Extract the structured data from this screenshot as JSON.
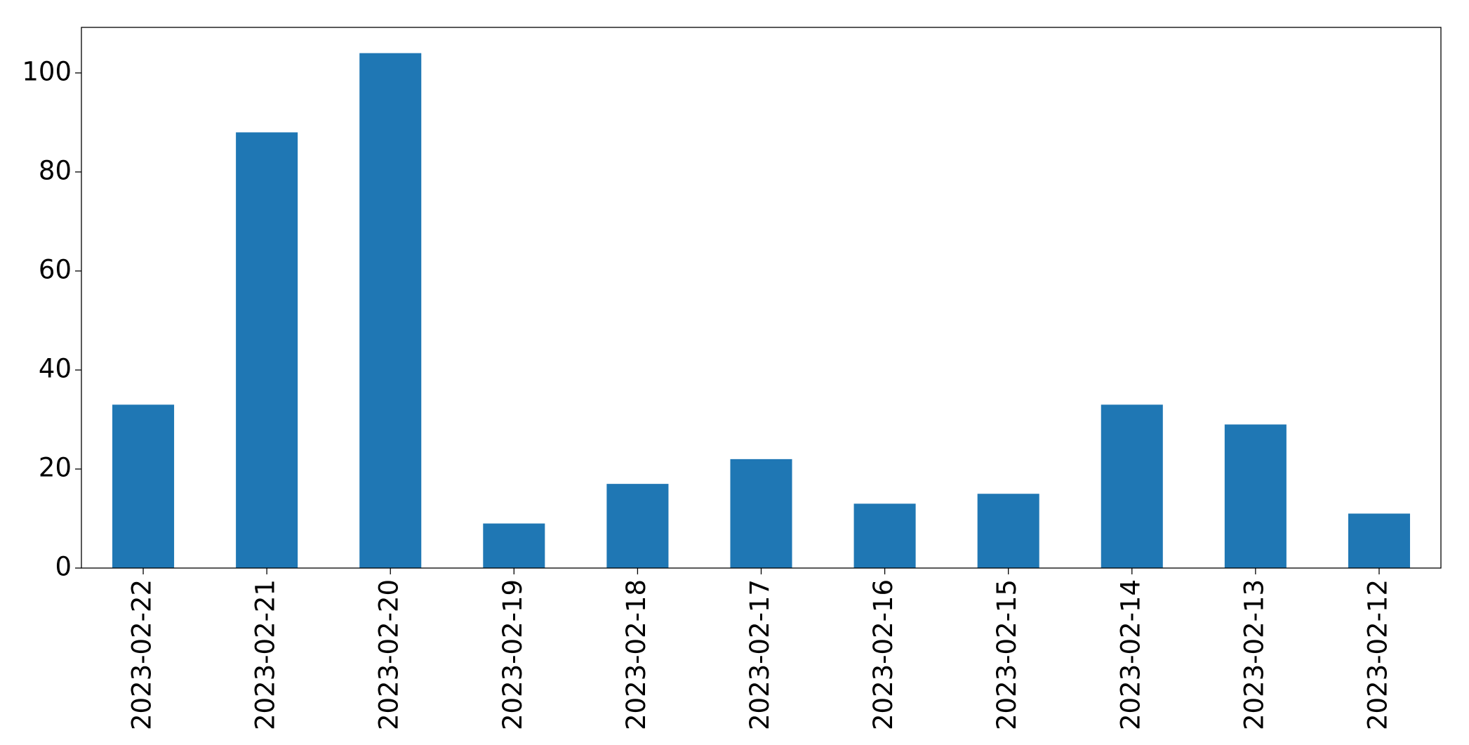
{
  "chart_data": {
    "type": "bar",
    "categories": [
      "2023-02-22",
      "2023-02-21",
      "2023-02-20",
      "2023-02-19",
      "2023-02-18",
      "2023-02-17",
      "2023-02-16",
      "2023-02-15",
      "2023-02-14",
      "2023-02-13",
      "2023-02-12"
    ],
    "values": [
      33,
      88,
      104,
      9,
      17,
      22,
      13,
      15,
      33,
      29,
      11
    ],
    "color": "#1f77b4",
    "ylim": [
      0,
      109.2
    ],
    "yticks": [
      0,
      20,
      40,
      60,
      80,
      100
    ],
    "grid": false
  }
}
